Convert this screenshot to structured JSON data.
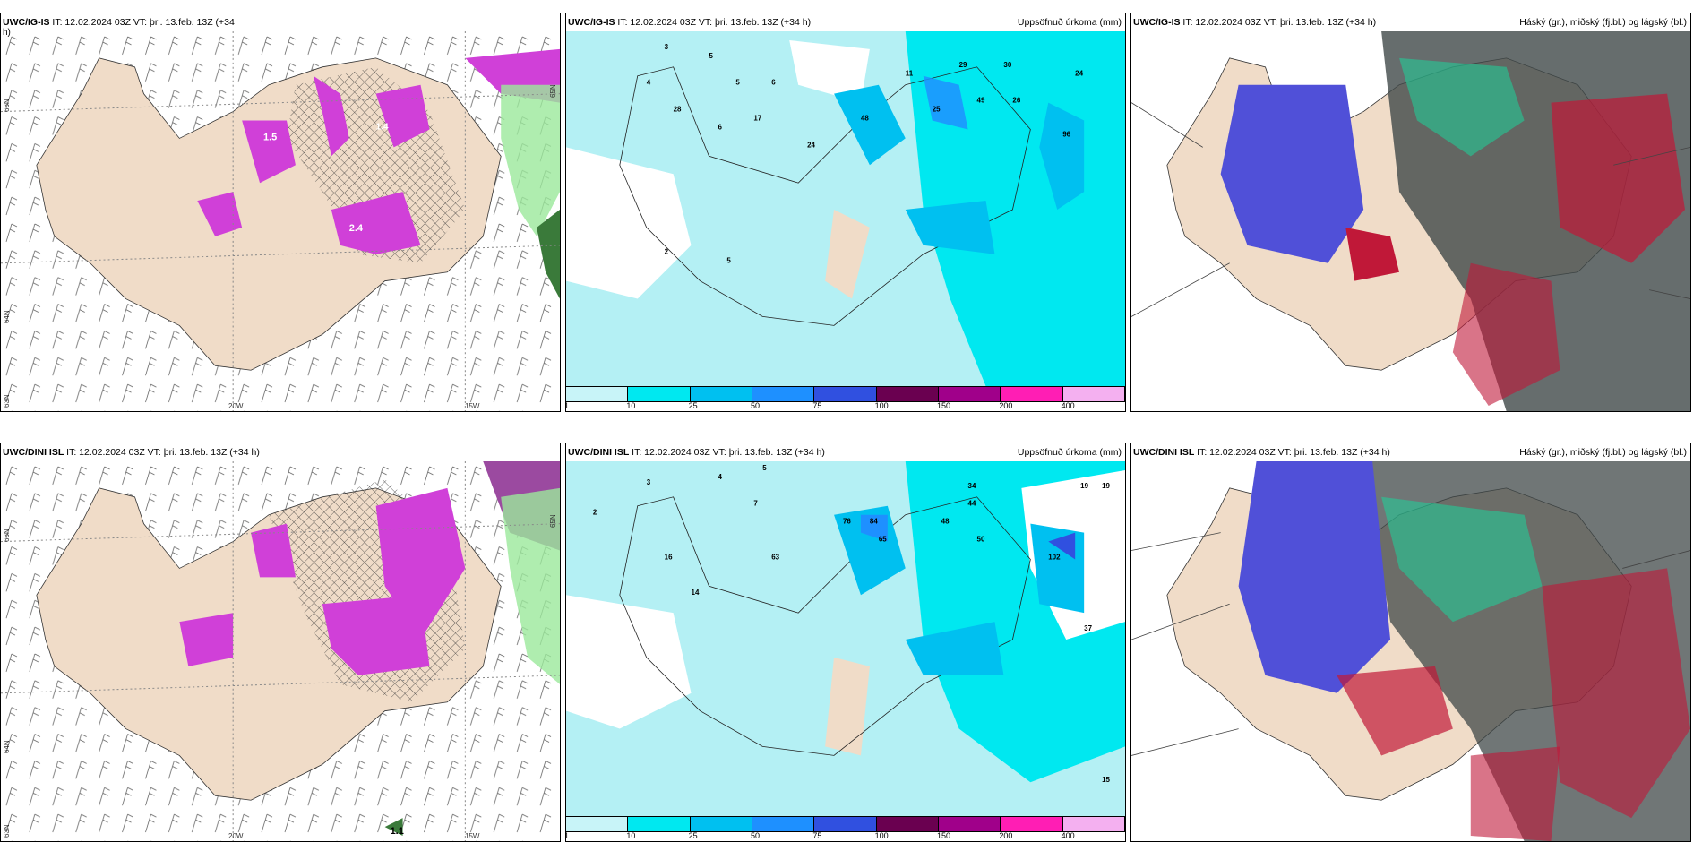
{
  "panels": {
    "p1": {
      "title_bold": "UWC/IG-IS",
      "title_rest": " IT: 12.02.2024 03Z VT: þri. 13.feb. 13Z (+34",
      "title_cont": "h)",
      "lat_labels": [
        "66N",
        "65N",
        "64N"
      ],
      "lon_labels": [
        "20W",
        "15W"
      ],
      "corner_lat": "63N"
    },
    "p2": {
      "title_bold": "UWC/IG-IS",
      "title_rest": " IT: 12.02.2024 03Z VT: þri. 13.feb. 13Z (+34 h)",
      "title_right": "Uppsöfnuð úrkoma (mm)",
      "numbers": [
        "3",
        "5",
        "4",
        "5",
        "6",
        "17",
        "6",
        "24",
        "29",
        "30",
        "26",
        "2",
        "5",
        "49",
        "96",
        "11",
        "25",
        "28",
        "48",
        "24"
      ]
    },
    "p3": {
      "title_bold": "UWC/IG-IS",
      "title_rest": " IT: 12.02.2024 03Z VT: þri. 13.feb. 13Z (+34 h)",
      "title_right": "Háský (gr.), miðský (fj.bl.) og lágský (bl.)"
    },
    "p4": {
      "title_bold": "UWC/DINI ISL",
      "title_rest": " IT: 12.02.2024 03Z VT: þri. 13.feb. 13Z (+34 h)",
      "lat_labels": [
        "66N",
        "65N",
        "64N"
      ],
      "lon_labels": [
        "20W",
        "15W"
      ],
      "corner_lat": "63N",
      "spot_value": "1.1"
    },
    "p5": {
      "title_bold": "UWC/DINI ISL",
      "title_rest": " IT: 12.02.2024 03Z VT: þri. 13.feb. 13Z (+34 h)",
      "title_right": "Uppsöfnuð úrkoma (mm)",
      "numbers": [
        "3",
        "4",
        "5",
        "7",
        "2",
        "16",
        "14",
        "44",
        "34",
        "19",
        "19",
        "15",
        "76",
        "84",
        "65",
        "48",
        "102",
        "50",
        "63",
        "37"
      ]
    },
    "p6": {
      "title_bold": "UWC/DINI ISL",
      "title_rest": " IT: 12.02.2024 03Z VT: þri. 13.feb. 13Z (+34 h)",
      "title_right": "Háský (gr.), miðský (fj.bl.) og lágský (bl.)"
    }
  },
  "precip_colorbar": {
    "ticks": [
      "1",
      "10",
      "25",
      "50",
      "75",
      "100",
      "150",
      "200",
      "400"
    ],
    "colors": [
      "#c8f4f8",
      "#00e8f0",
      "#00c0f0",
      "#1e90ff",
      "#3050e0",
      "#6a0050",
      "#a0008a",
      "#ff1eb4",
      "#f4b0f0"
    ]
  },
  "colors": {
    "land": "#f0dcc8",
    "snow_magenta": "#d040d8",
    "rain_green": "#9be89b",
    "precip_light": "#b4f0f4",
    "precip_cyan": "#00e8f0",
    "high_cloud_gray": "#404848",
    "mid_cloud_green": "#1ed49a",
    "low_cloud_blue": "#5050d8",
    "low_cloud_red": "#c01838"
  }
}
